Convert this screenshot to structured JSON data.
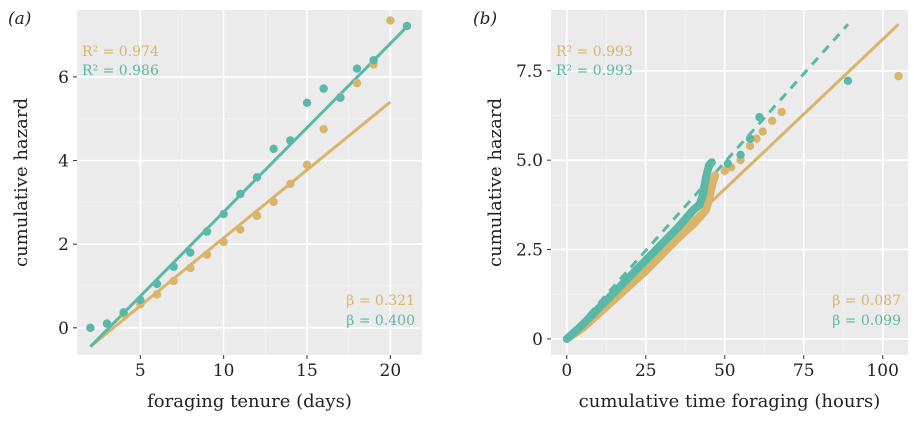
{
  "chart_data": [
    {
      "type": "scatter",
      "panel_label": "(a)",
      "xlabel": "foraging tenure (days)",
      "ylabel": "cumulative hazard",
      "xlim": [
        1.2,
        21.9
      ],
      "ylim": [
        -0.65,
        7.6
      ],
      "xticks": [
        5,
        10,
        15,
        20
      ],
      "yticks": [
        0,
        2,
        4,
        6
      ],
      "grid": true,
      "background": "#ebebeb",
      "series": [
        {
          "color": "#d9b46a",
          "points": [
            [
              2,
              0.0
            ],
            [
              3,
              0.1
            ],
            [
              4,
              0.33
            ],
            [
              5,
              0.56
            ],
            [
              6,
              0.8
            ],
            [
              7,
              1.12
            ],
            [
              8,
              1.43
            ],
            [
              9,
              1.75
            ],
            [
              10,
              2.05
            ],
            [
              11,
              2.35
            ],
            [
              12,
              2.68
            ],
            [
              13,
              3.01
            ],
            [
              14,
              3.44
            ],
            [
              15,
              3.9
            ],
            [
              16,
              4.75
            ],
            [
              17,
              5.52
            ],
            [
              18,
              5.85
            ],
            [
              19,
              6.3
            ],
            [
              20,
              7.35
            ]
          ],
          "fit": {
            "x": [
              2,
              20
            ],
            "y": [
              -0.45,
              5.4
            ],
            "style": "solid"
          }
        },
        {
          "color": "#5ab8a6",
          "points": [
            [
              2,
              0.0
            ],
            [
              3,
              0.1
            ],
            [
              4,
              0.37
            ],
            [
              5,
              0.67
            ],
            [
              6,
              1.05
            ],
            [
              7,
              1.46
            ],
            [
              8,
              1.8
            ],
            [
              9,
              2.3
            ],
            [
              10,
              2.72
            ],
            [
              11,
              3.2
            ],
            [
              12,
              3.6
            ],
            [
              13,
              4.28
            ],
            [
              14,
              4.48
            ],
            [
              15,
              5.38
            ],
            [
              16,
              5.72
            ],
            [
              17,
              5.5
            ],
            [
              18,
              6.2
            ],
            [
              19,
              6.4
            ],
            [
              21,
              7.22
            ]
          ],
          "fit": {
            "x": [
              2,
              21
            ],
            "y": [
              -0.45,
              7.2
            ],
            "style": "solid"
          }
        }
      ],
      "annotations": {
        "r2_gold": "R² = 0.974",
        "r2_teal": "R² = 0.986",
        "beta_gold": "β = 0.321",
        "beta_teal": "β = 0.400"
      }
    },
    {
      "type": "scatter",
      "panel_label": "(b)",
      "xlabel": "cumulative time foraging (hours)",
      "ylabel": "cumulative hazard",
      "xlim": [
        -5,
        108
      ],
      "ylim": [
        -0.45,
        9.2
      ],
      "xticks": [
        0,
        25,
        50,
        75,
        100
      ],
      "yticks": [
        0.0,
        2.5,
        5.0,
        7.5
      ],
      "ytick_labels": [
        "0",
        "2.5",
        "5.0",
        "7.5"
      ],
      "grid": true,
      "background": "#ebebeb",
      "series": [
        {
          "color": "#d9b46a",
          "dense_curve": [
            [
              0,
              0
            ],
            [
              5,
              0.3
            ],
            [
              10,
              0.7
            ],
            [
              15,
              1.1
            ],
            [
              20,
              1.5
            ],
            [
              25,
              1.9
            ],
            [
              30,
              2.35
            ],
            [
              35,
              2.8
            ],
            [
              40,
              3.2
            ],
            [
              42,
              3.4
            ],
            [
              44,
              3.6
            ],
            [
              45,
              3.9
            ],
            [
              46,
              4.3
            ],
            [
              47,
              4.6
            ]
          ],
          "points": [
            [
              50,
              4.7
            ],
            [
              52,
              4.8
            ],
            [
              55,
              5.0
            ],
            [
              58,
              5.4
            ],
            [
              60,
              5.6
            ],
            [
              62,
              5.8
            ],
            [
              65,
              6.1
            ],
            [
              68,
              6.35
            ],
            [
              105,
              7.35
            ]
          ],
          "fit": {
            "x": [
              0,
              105
            ],
            "y": [
              0,
              8.8
            ],
            "style": "solid"
          }
        },
        {
          "color": "#5ab8a6",
          "dense_curve": [
            [
              0,
              0
            ],
            [
              5,
              0.4
            ],
            [
              10,
              0.85
            ],
            [
              15,
              1.3
            ],
            [
              20,
              1.75
            ],
            [
              25,
              2.2
            ],
            [
              30,
              2.65
            ],
            [
              35,
              3.1
            ],
            [
              38,
              3.4
            ],
            [
              40,
              3.6
            ],
            [
              42,
              3.75
            ],
            [
              43,
              4.0
            ],
            [
              44,
              4.5
            ],
            [
              45,
              4.85
            ],
            [
              46,
              4.95
            ]
          ],
          "points": [
            [
              51,
              4.9
            ],
            [
              55,
              5.15
            ],
            [
              58,
              5.6
            ],
            [
              61,
              6.2
            ],
            [
              89,
              7.22
            ]
          ],
          "fit": {
            "x": [
              0,
              89
            ],
            "y": [
              0,
              8.8
            ],
            "style": "dashed"
          }
        }
      ],
      "annotations": {
        "r2_gold": "R² = 0.993",
        "r2_teal": "R² = 0.993",
        "beta_gold": "β = 0.087",
        "beta_teal": "β = 0.099"
      }
    }
  ]
}
